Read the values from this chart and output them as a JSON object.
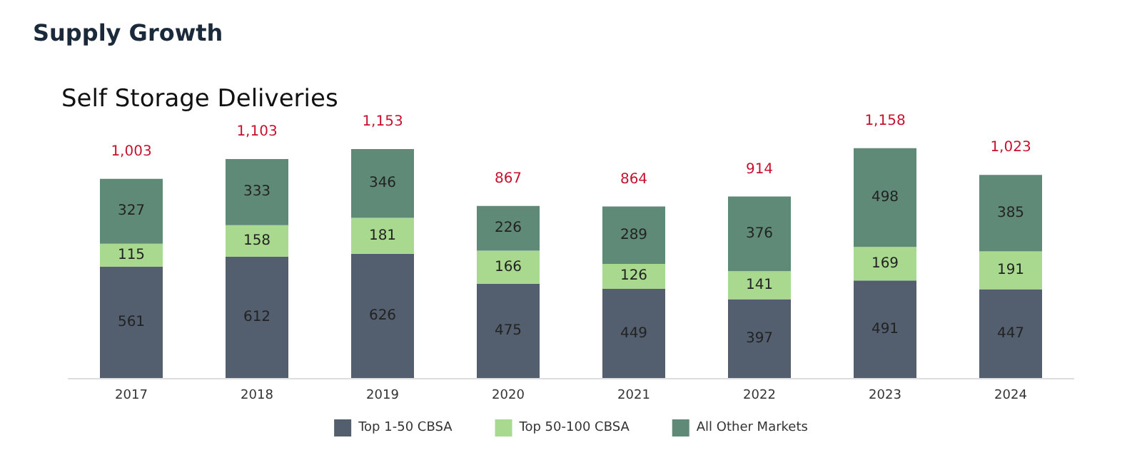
{
  "chart_data": {
    "type": "bar",
    "title": "Supply Growth",
    "subtitle": "Self Storage Deliveries",
    "categories": [
      "2017",
      "2018",
      "2019",
      "2020",
      "2021",
      "2022",
      "2023",
      "2024"
    ],
    "stacked": true,
    "data_labels": true,
    "legend": "bottom",
    "tick_labels": "x",
    "series": [
      {
        "name": "Top 1-50 CBSA",
        "color": "#535f6e",
        "values": [
          561,
          612,
          626,
          475,
          449,
          397,
          491,
          447
        ]
      },
      {
        "name": "Top 50-100 CBSA",
        "color": "#a9d98f",
        "values": [
          115,
          158,
          181,
          166,
          126,
          141,
          169,
          191
        ]
      },
      {
        "name": "All Other Markets",
        "color": "#5f8a77",
        "values": [
          327,
          333,
          346,
          226,
          289,
          376,
          498,
          385
        ]
      }
    ],
    "totals": [
      "1,003",
      "1,103",
      "1,153",
      "867",
      "864",
      "914",
      "1,158",
      "1,023"
    ]
  }
}
